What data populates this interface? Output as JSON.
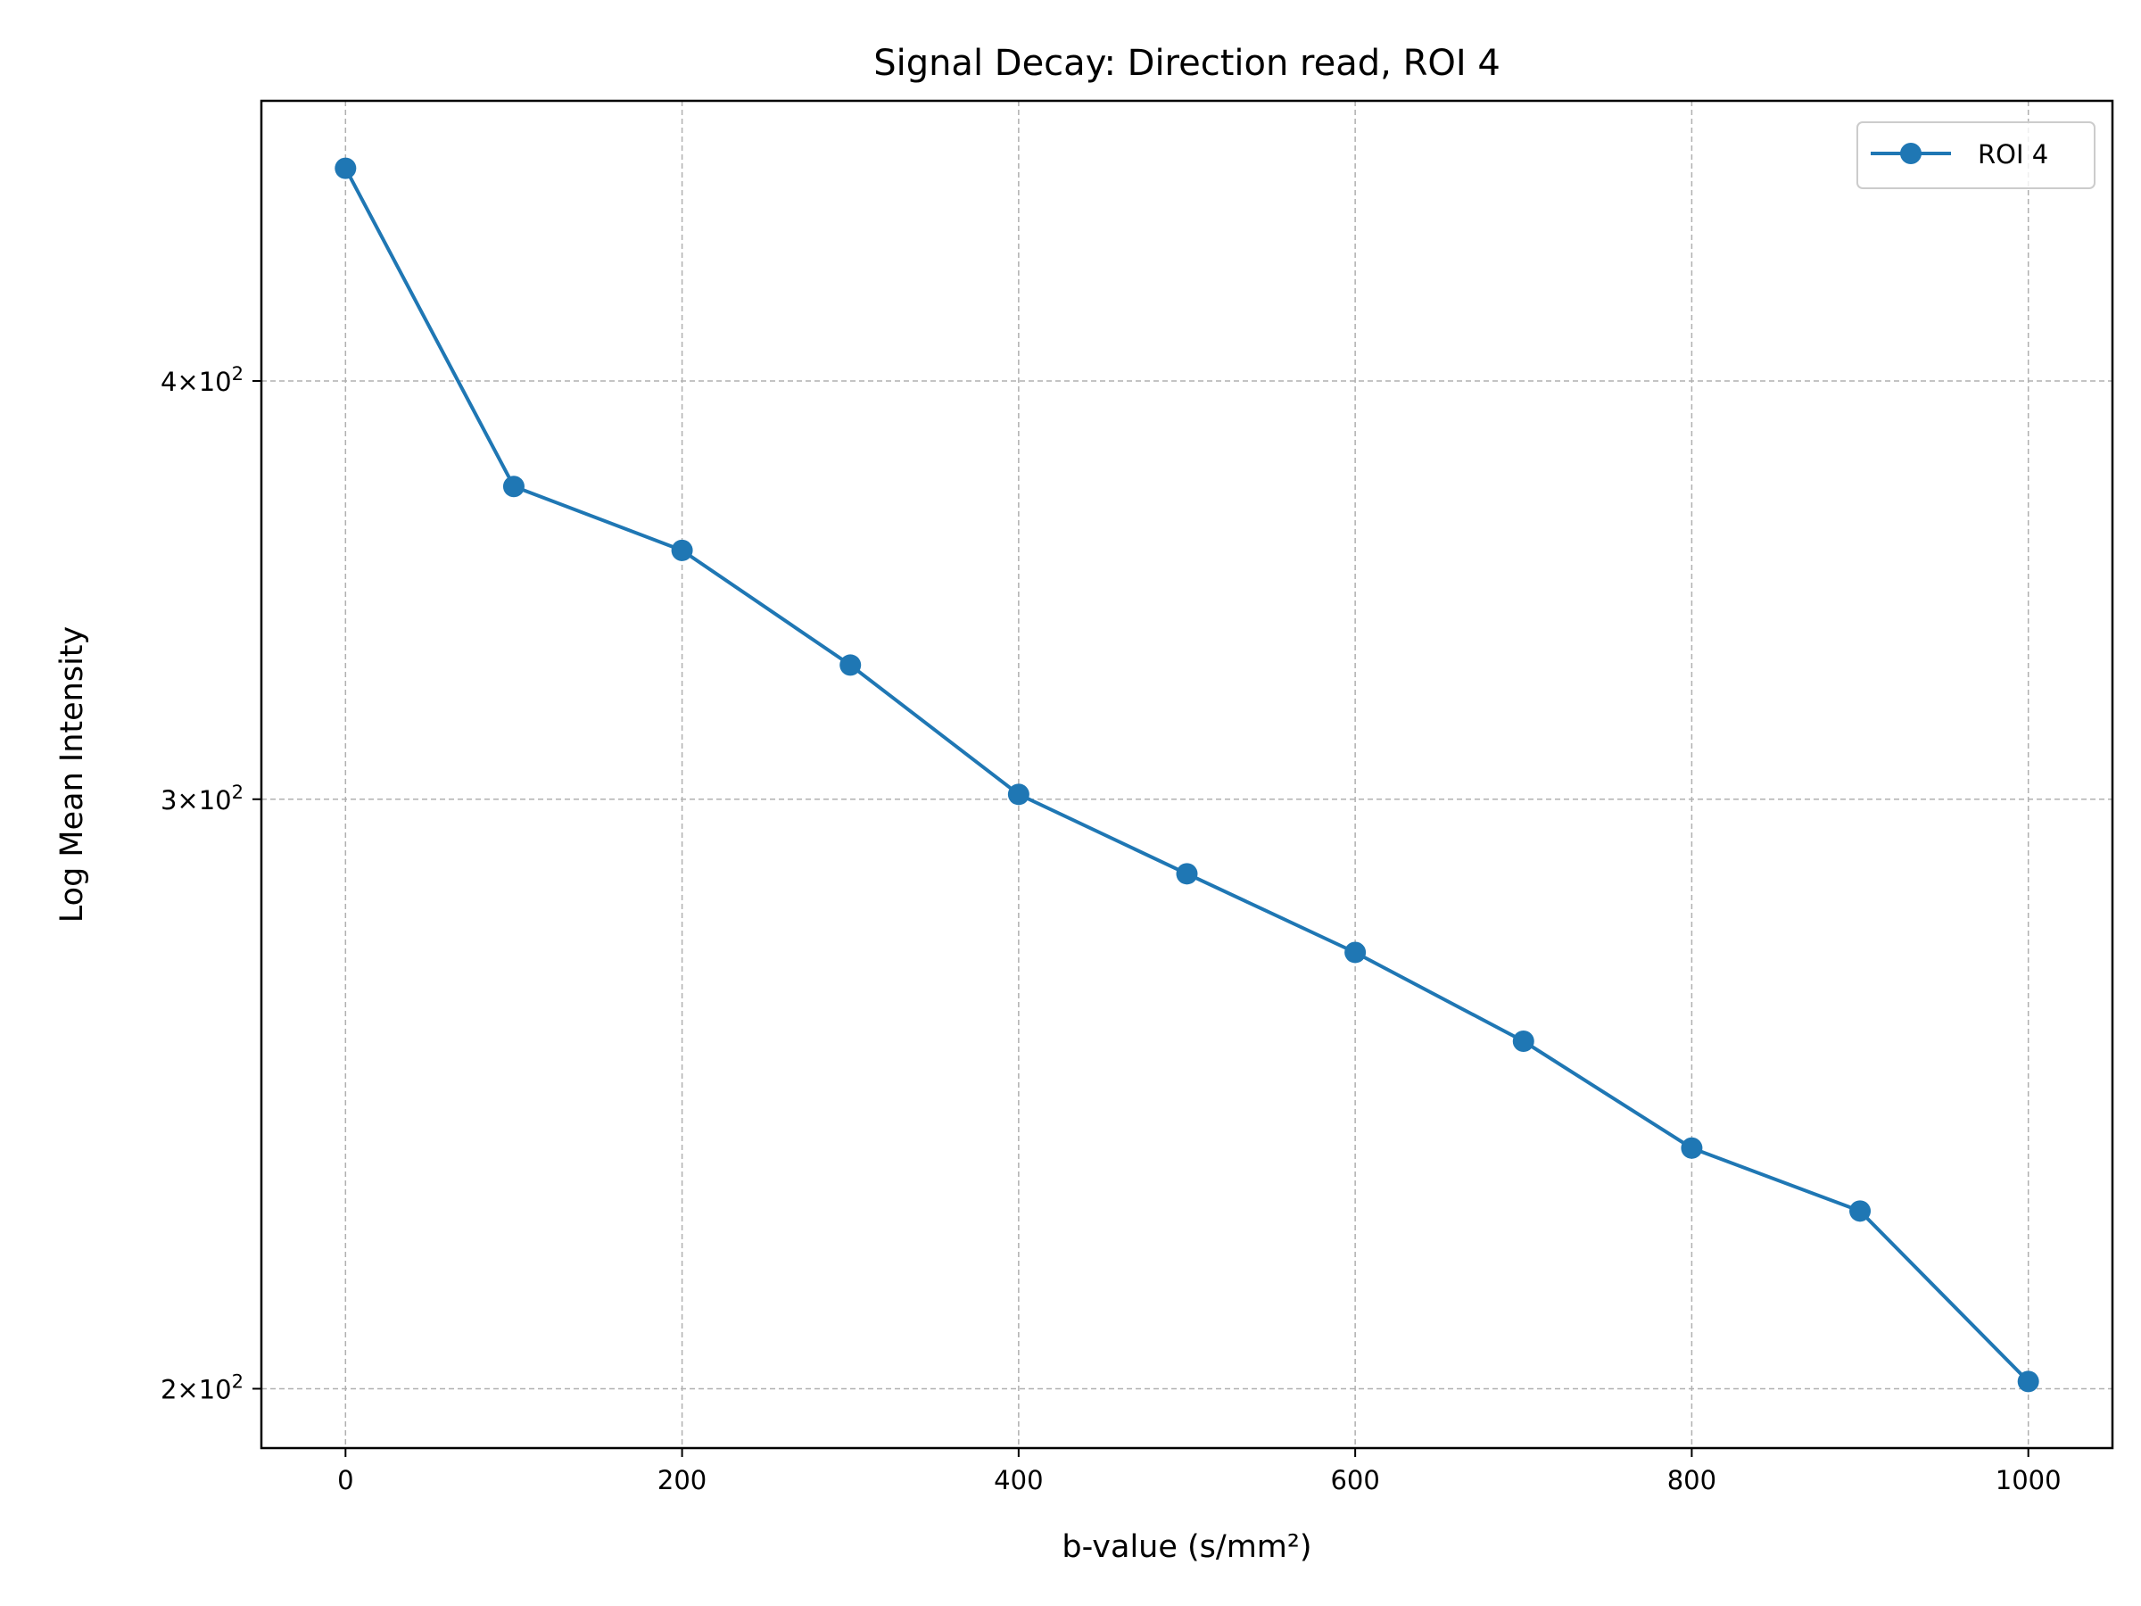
{
  "chart_data": {
    "type": "line",
    "title": "Signal Decay: Direction read, ROI 4",
    "xlabel": "b-value (s/mm²)",
    "ylabel": "Log Mean Intensity",
    "xlim": [
      -50,
      1050
    ],
    "ylim": [
      192,
      485
    ],
    "yscale": "log",
    "grid": true,
    "legend_position": "upper right",
    "x_ticks": [
      0,
      200,
      400,
      600,
      800,
      1000
    ],
    "y_ticks": [
      {
        "value": 400,
        "mantissa": "4",
        "base": "10",
        "exponent": "2"
      },
      {
        "value": 300,
        "mantissa": "3",
        "base": "10",
        "exponent": "2"
      },
      {
        "value": 200,
        "mantissa": "2",
        "base": "10",
        "exponent": "2"
      }
    ],
    "x": [
      0,
      100,
      200,
      300,
      400,
      500,
      600,
      700,
      800,
      900,
      1000
    ],
    "series": [
      {
        "name": "ROI 4",
        "color": "#1f77b4",
        "values": [
          463,
          372,
          356,
          329,
          301,
          285,
          270,
          254,
          236,
          226,
          201
        ]
      }
    ]
  }
}
